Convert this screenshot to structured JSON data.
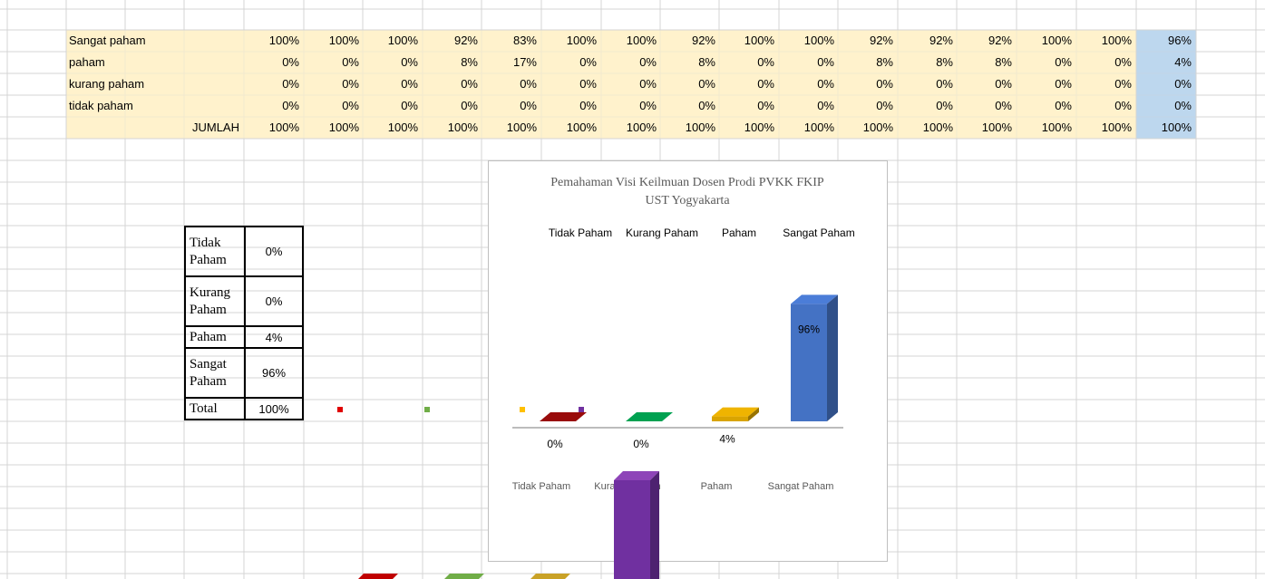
{
  "sheet": {
    "rows": [
      {
        "label": "Sangat paham",
        "cells": [
          "100%",
          "100%",
          "100%",
          "92%",
          "83%",
          "100%",
          "100%",
          "92%",
          "100%",
          "100%",
          "92%",
          "92%",
          "92%",
          "100%",
          "100%",
          "96%"
        ]
      },
      {
        "label": "paham",
        "cells": [
          "0%",
          "0%",
          "0%",
          "8%",
          "17%",
          "0%",
          "0%",
          "8%",
          "0%",
          "0%",
          "8%",
          "8%",
          "8%",
          "0%",
          "0%",
          "4%"
        ]
      },
      {
        "label": "kurang paham",
        "cells": [
          "0%",
          "0%",
          "0%",
          "0%",
          "0%",
          "0%",
          "0%",
          "0%",
          "0%",
          "0%",
          "0%",
          "0%",
          "0%",
          "0%",
          "0%",
          "0%"
        ]
      },
      {
        "label": "tidak paham",
        "cells": [
          "0%",
          "0%",
          "0%",
          "0%",
          "0%",
          "0%",
          "0%",
          "0%",
          "0%",
          "0%",
          "0%",
          "0%",
          "0%",
          "0%",
          "0%",
          "0%"
        ]
      }
    ],
    "total_row": {
      "label": "JUMLAH",
      "cells": [
        "100%",
        "100%",
        "100%",
        "100%",
        "100%",
        "100%",
        "100%",
        "100%",
        "100%",
        "100%",
        "100%",
        "100%",
        "100%",
        "100%",
        "100%",
        "100%"
      ]
    }
  },
  "summary": {
    "rows": [
      [
        "Tidak Paham",
        "0%"
      ],
      [
        "Kurang Paham",
        "0%"
      ],
      [
        "Paham",
        "4%"
      ],
      [
        "Sangat Paham",
        "96%"
      ],
      [
        "Total",
        "100%"
      ]
    ]
  },
  "chart_data": {
    "type": "bar3d",
    "title": "Pemahaman Visi Keilmuan Dosen Prodi PVKK FKIP UST Yogyakarta",
    "categories": [
      "Tidak Paham",
      "Kurang Paham",
      "Paham",
      "Sangat Paham"
    ],
    "values": [
      0,
      0,
      4,
      96
    ],
    "value_labels": [
      "0%",
      "0%",
      "4%",
      "96%"
    ],
    "colors": [
      "#8b0a0a",
      "#00924a",
      "#d9a400",
      "#4472c4"
    ]
  }
}
